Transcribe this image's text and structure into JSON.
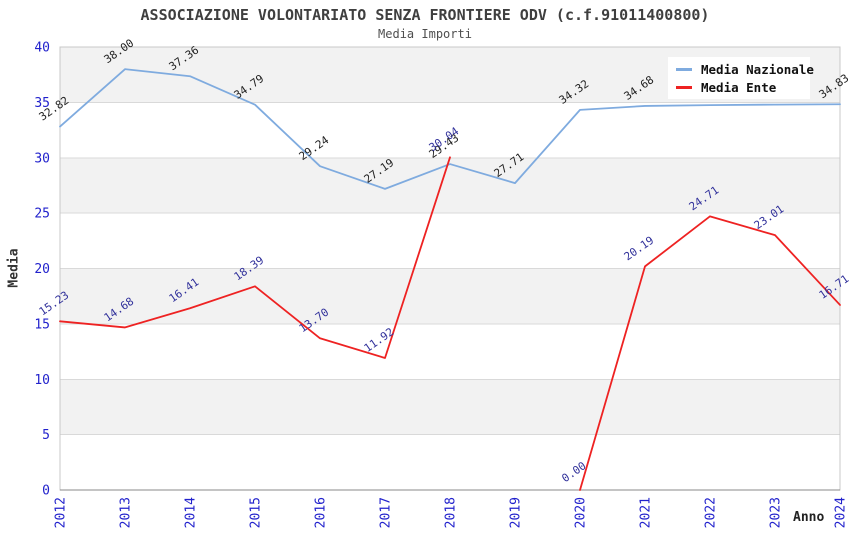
{
  "header": {
    "title": "ASSOCIAZIONE VOLONTARIATO SENZA FRONTIERE ODV (c.f.91011400800)",
    "subtitle": "Media Importi"
  },
  "axes": {
    "y_label": "Media",
    "x_label": "Anno",
    "y_ticks": [
      0,
      5,
      10,
      15,
      20,
      25,
      30,
      35,
      40
    ],
    "x_ticks": [
      "2012",
      "2013",
      "2014",
      "2015",
      "2016",
      "2017",
      "2018",
      "2019",
      "2020",
      "2021",
      "2022",
      "2023",
      "2024"
    ]
  },
  "legend": {
    "items": [
      {
        "label": "Media Nazionale",
        "color": "#7fabdf"
      },
      {
        "label": "Media Ente",
        "color": "#ee2222"
      }
    ]
  },
  "colors": {
    "band_gray": "#f2f2f2",
    "band_white": "#ffffff",
    "gridline": "#d9d9d9",
    "plot_border": "#c8c8c8",
    "axis_line": "#8a8a8a",
    "tick_text": "#2222cc",
    "label_nazionale": "#1f1f1f",
    "label_ente": "#31319b"
  },
  "chart_data": {
    "type": "line",
    "title": "ASSOCIAZIONE VOLONTARIATO SENZA FRONTIERE ODV (c.f.91011400800)",
    "subtitle": "Media Importi",
    "xlabel": "Anno",
    "ylabel": "Media",
    "ylim": [
      0,
      40
    ],
    "grid": "horizontal",
    "legend_position": "top-right",
    "x": [
      "2012",
      "2013",
      "2014",
      "2015",
      "2016",
      "2017",
      "2018",
      "2019",
      "2020",
      "2021",
      "2022",
      "2023",
      "2024"
    ],
    "series": [
      {
        "name": "Media Nazionale",
        "color": "#7fabdf",
        "values": [
          32.82,
          38.0,
          37.36,
          34.79,
          29.24,
          27.19,
          29.43,
          27.71,
          34.32,
          34.68,
          34.75,
          34.8,
          34.83
        ],
        "labels": [
          "32.82",
          "38.00",
          "37.36",
          "34.79",
          "29.24",
          "27.19",
          "29.43",
          "27.71",
          "34.32",
          "34.68",
          "",
          "",
          "34.83"
        ]
      },
      {
        "name": "Media Ente",
        "color": "#ee2222",
        "values": [
          15.23,
          14.68,
          16.41,
          18.39,
          13.7,
          11.92,
          30.04,
          null,
          0.0,
          20.19,
          24.71,
          23.01,
          16.71
        ],
        "labels": [
          "15.23",
          "14.68",
          "16.41",
          "18.39",
          "13.70",
          "11.92",
          "30.04",
          "",
          "0.00",
          "20.19",
          "24.71",
          "23.01",
          "16.71"
        ]
      }
    ]
  }
}
